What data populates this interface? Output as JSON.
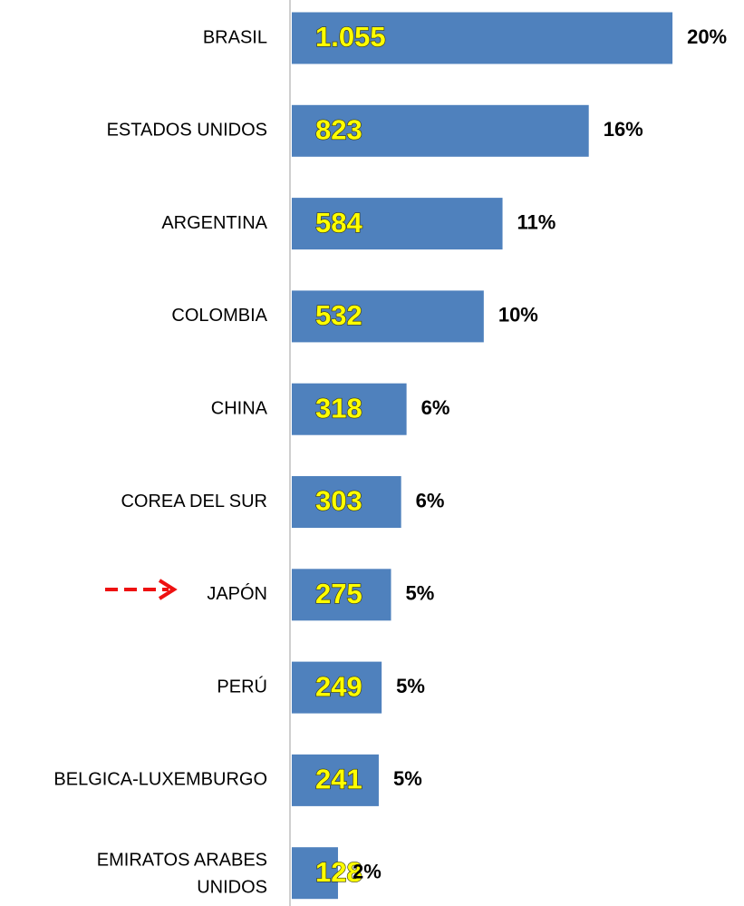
{
  "chart_data": {
    "type": "barh",
    "categories": [
      "BRASIL",
      "ESTADOS UNIDOS",
      "ARGENTINA",
      "COLOMBIA",
      "CHINA",
      "COREA DEL SUR",
      "JAPÓN",
      "PERÚ",
      "BELGICA-LUXEMBURGO",
      "EMIRATOS ARABES UNIDOS"
    ],
    "values": [
      1055,
      823,
      584,
      532,
      318,
      303,
      275,
      249,
      241,
      128
    ],
    "value_labels": [
      "1.055",
      "823",
      "584",
      "532",
      "318",
      "303",
      "275",
      "249",
      "241",
      "128"
    ],
    "shares": [
      20,
      16,
      11,
      10,
      6,
      6,
      5,
      5,
      5,
      2
    ],
    "share_labels": [
      "20%",
      "16%",
      "11%",
      "10%",
      "6%",
      "6%",
      "5%",
      "5%",
      "5%",
      "2%"
    ],
    "color": "#4f81bd",
    "xlim": [
      0,
      1100
    ]
  }
}
